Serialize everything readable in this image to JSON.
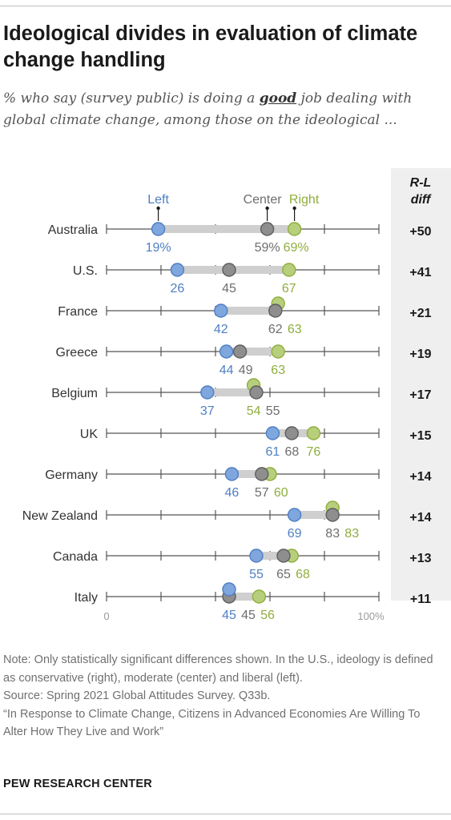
{
  "title": "Ideological divides in evaluation of climate change handling",
  "subtitle": {
    "before": "% who say (survey public) is doing a ",
    "emphasis": "good",
    "after": " job dealing with global climate change, among those on the ideological ..."
  },
  "diff_header": [
    "R-L",
    "diff"
  ],
  "notes": [
    "Note: Only statistically significant differences shown. In the U.S., ideology is defined as conservative (right), moderate (center) and liberal (left).",
    "Source: Spring 2021 Global Attitudes Survey. Q33b.",
    "“In Response to Climate Change, Citizens in Advanced Economies Are Willing To Alter How They Live and Work”"
  ],
  "footer": "PEW RESEARCH CENTER",
  "colors": {
    "left": "#7fa6dd",
    "center": "#8e8e8e",
    "right": "#b7cf7c",
    "left_text": "#4f7fc3",
    "center_text": "#6e6e6e",
    "right_text": "#8fae3e"
  },
  "chart_data": {
    "type": "dot",
    "xlim": [
      0,
      100
    ],
    "x_tick_labels": [
      "0",
      "100%"
    ],
    "series": [
      {
        "name": "Left",
        "key": "left"
      },
      {
        "name": "Center",
        "key": "center"
      },
      {
        "name": "Right",
        "key": "right"
      }
    ],
    "rows": [
      {
        "country": "Australia",
        "left": 19,
        "center": 59,
        "right": 69,
        "diff": "+50",
        "labels": {
          "left": "19%",
          "center": "59%",
          "right": "69%"
        }
      },
      {
        "country": "U.S.",
        "left": 26,
        "center": 45,
        "right": 67,
        "diff": "+41",
        "labels": {
          "left": "26",
          "center": "45",
          "right": "67"
        }
      },
      {
        "country": "France",
        "left": 42,
        "center": 62,
        "right": 63,
        "diff": "+21",
        "labels": {
          "left": "42",
          "center": "62",
          "right": "63"
        }
      },
      {
        "country": "Greece",
        "left": 44,
        "center": 49,
        "right": 63,
        "diff": "+19",
        "labels": {
          "left": "44",
          "center": "49",
          "right": "63"
        }
      },
      {
        "country": "Belgium",
        "left": 37,
        "center": 55,
        "right": 54,
        "diff": "+17",
        "labels": {
          "left": "37",
          "center": "55",
          "right": "54"
        }
      },
      {
        "country": "UK",
        "left": 61,
        "center": 68,
        "right": 76,
        "diff": "+15",
        "labels": {
          "left": "61",
          "center": "68",
          "right": "76"
        }
      },
      {
        "country": "Germany",
        "left": 46,
        "center": 57,
        "right": 60,
        "diff": "+14",
        "labels": {
          "left": "46",
          "center": "57",
          "right": "60"
        }
      },
      {
        "country": "New Zealand",
        "left": 69,
        "center": 83,
        "right": 83,
        "diff": "+14",
        "labels": {
          "left": "69",
          "center": "83",
          "right": "83"
        }
      },
      {
        "country": "Canada",
        "left": 55,
        "center": 65,
        "right": 68,
        "diff": "+13",
        "labels": {
          "left": "55",
          "center": "65",
          "right": "68"
        }
      },
      {
        "country": "Italy",
        "left": 45,
        "center": 45,
        "right": 56,
        "diff": "+11",
        "labels": {
          "left": "45",
          "center": "45",
          "right": "56"
        }
      }
    ]
  }
}
